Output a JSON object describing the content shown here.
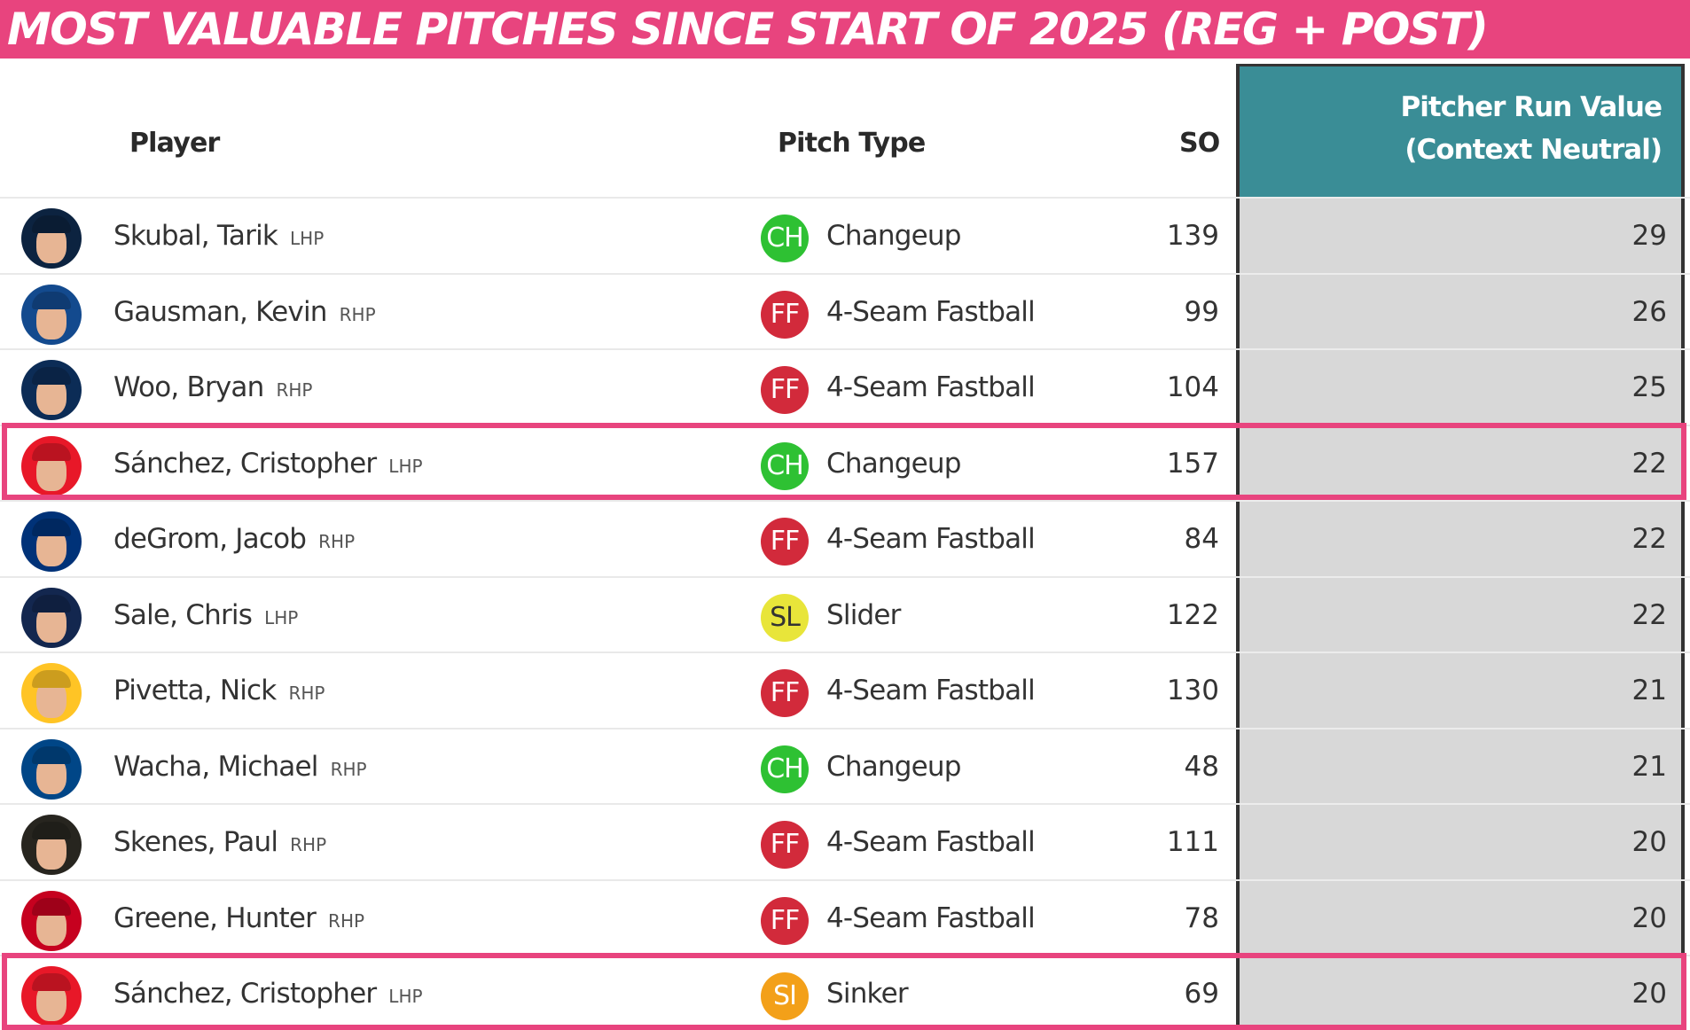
{
  "banner": {
    "title": "MOST VALUABLE PITCHES SINCE START OF 2025 (REG + POST)"
  },
  "headers": {
    "player": "Player",
    "pitch_type": "Pitch Type",
    "so": "SO",
    "run_value_line1": "Pitcher Run Value",
    "run_value_line2": "(Context Neutral)"
  },
  "colors": {
    "banner": "#e8447e",
    "highlight": "#e8447e",
    "run_value_header": "#3a8d96",
    "run_value_column": "#d8d8d8",
    "CH": "#2ec133",
    "FF": "#d22a3b",
    "SL": "#e8e53a",
    "SI": "#f3a019"
  },
  "rows": [
    {
      "player": "Skubal, Tarik",
      "hand": "LHP",
      "pitch_code": "CH",
      "pitch": "Changeup",
      "so": "139",
      "run_value": "29",
      "highlighted": false,
      "team_color": "#0c2340"
    },
    {
      "player": "Gausman, Kevin",
      "hand": "RHP",
      "pitch_code": "FF",
      "pitch": "4-Seam Fastball",
      "so": "99",
      "run_value": "26",
      "highlighted": false,
      "team_color": "#134a8e"
    },
    {
      "player": "Woo, Bryan",
      "hand": "RHP",
      "pitch_code": "FF",
      "pitch": "4-Seam Fastball",
      "so": "104",
      "run_value": "25",
      "highlighted": false,
      "team_color": "#0c2c56"
    },
    {
      "player": "Sánchez, Cristopher",
      "hand": "LHP",
      "pitch_code": "CH",
      "pitch": "Changeup",
      "so": "157",
      "run_value": "22",
      "highlighted": true,
      "team_color": "#e81828"
    },
    {
      "player": "deGrom, Jacob",
      "hand": "RHP",
      "pitch_code": "FF",
      "pitch": "4-Seam Fastball",
      "so": "84",
      "run_value": "22",
      "highlighted": false,
      "team_color": "#003278"
    },
    {
      "player": "Sale, Chris",
      "hand": "LHP",
      "pitch_code": "SL",
      "pitch": "Slider",
      "so": "122",
      "run_value": "22",
      "highlighted": false,
      "team_color": "#13274f"
    },
    {
      "player": "Pivetta, Nick",
      "hand": "RHP",
      "pitch_code": "FF",
      "pitch": "4-Seam Fastball",
      "so": "130",
      "run_value": "21",
      "highlighted": false,
      "team_color": "#ffc425"
    },
    {
      "player": "Wacha, Michael",
      "hand": "RHP",
      "pitch_code": "CH",
      "pitch": "Changeup",
      "so": "48",
      "run_value": "21",
      "highlighted": false,
      "team_color": "#004687"
    },
    {
      "player": "Skenes, Paul",
      "hand": "RHP",
      "pitch_code": "FF",
      "pitch": "4-Seam Fastball",
      "so": "111",
      "run_value": "20",
      "highlighted": false,
      "team_color": "#27251f"
    },
    {
      "player": "Greene, Hunter",
      "hand": "RHP",
      "pitch_code": "FF",
      "pitch": "4-Seam Fastball",
      "so": "78",
      "run_value": "20",
      "highlighted": false,
      "team_color": "#c6011f"
    },
    {
      "player": "Sánchez, Cristopher",
      "hand": "LHP",
      "pitch_code": "SI",
      "pitch": "Sinker",
      "so": "69",
      "run_value": "20",
      "highlighted": true,
      "team_color": "#e81828"
    }
  ]
}
